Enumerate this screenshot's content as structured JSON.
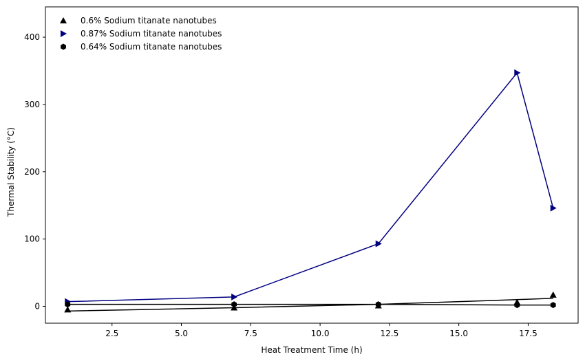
{
  "chart_data": {
    "type": "line",
    "title": "",
    "xlabel": "Heat Treatment Time (h)",
    "ylabel": "Thermal Stability (°C)",
    "xlim": [
      0.1,
      19.3
    ],
    "ylim": [
      -25,
      445
    ],
    "xticks": [
      2.5,
      5.0,
      7.5,
      10.0,
      12.5,
      15.0,
      17.5
    ],
    "xtick_labels": [
      "2.5",
      "5.0",
      "7.5",
      "10.0",
      "12.5",
      "15.0",
      "17.5"
    ],
    "yticks": [
      0,
      100,
      200,
      300,
      400
    ],
    "ytick_labels": [
      "0",
      "100",
      "200",
      "300",
      "400"
    ],
    "grid": false,
    "legend_position": "top-left",
    "series": [
      {
        "name": "0.6% Sodium titanate nanotubes",
        "marker": "triangle-up",
        "color": "#000000",
        "x": [
          0.9,
          6.9,
          12.1,
          17.1,
          18.4
        ],
        "y": [
          -7,
          -2,
          3,
          10,
          12
        ],
        "markers_y": [
          -5,
          -2,
          1,
          6,
          17
        ]
      },
      {
        "name": "0.87% Sodium titanate nanotubes",
        "marker": "triangle-right",
        "color": "#000080",
        "x": [
          0.9,
          6.9,
          12.1,
          17.1,
          18.4
        ],
        "y": [
          7,
          14,
          93,
          347,
          146
        ]
      },
      {
        "name": "0.64% Sodium titanate nanotubes",
        "marker": "hexagon",
        "color": "#000000",
        "x": [
          0.9,
          6.9,
          12.1,
          17.1,
          18.4
        ],
        "y": [
          3,
          3,
          3,
          2,
          2
        ]
      }
    ]
  }
}
